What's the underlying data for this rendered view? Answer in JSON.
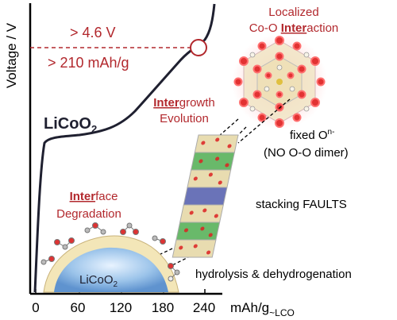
{
  "axis": {
    "y_label": "Voltage / V",
    "x_label_main": "mAh/g",
    "x_label_sub": "~LCO",
    "x_ticks": [
      "0",
      "60",
      "120",
      "180",
      "240"
    ]
  },
  "curve": {
    "label_main": "LiCoO",
    "label_sub": "2",
    "voltage_annotation": "> 4.6 V",
    "capacity_annotation": "> 210 mAh/g"
  },
  "localized": {
    "line1": "Localized",
    "line2_pre": "Co-O ",
    "line2_bold": "Inter",
    "line2_post": "action"
  },
  "intergrowth": {
    "line1_bold": "Inter",
    "line1_post": "growth",
    "line2": "Evolution"
  },
  "interface": {
    "line1_bold": "Inter",
    "line1_post": "face",
    "line2": "Degradation"
  },
  "labels": {
    "fixed_o_main": "fixed O",
    "fixed_o_sup": "n-",
    "no_dimer": "(NO O-O dimer)",
    "stacking": "stacking FAULTS",
    "hydrolysis": "hydrolysis & dehydrogenation",
    "particle_main": "LiCoO",
    "particle_sub": "2"
  },
  "colors": {
    "accent_red": "#b2282d",
    "curve": "#1f2030",
    "layer_green": "#69b96a",
    "layer_blue": "#6a73b8",
    "layer_tan": "#e8dcb0",
    "particle_blue": "#7fb0e0",
    "particle_shell": "#f3e6b8"
  }
}
